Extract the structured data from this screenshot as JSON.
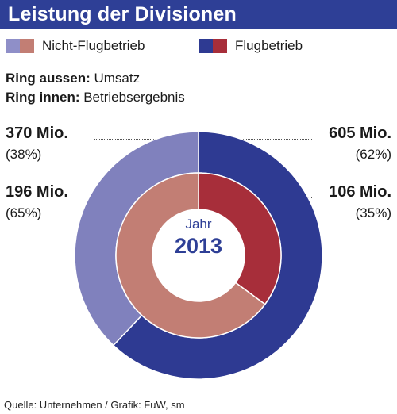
{
  "title": "Leistung der Divisionen",
  "legend": [
    {
      "label": "Nicht-Flugbetrieb",
      "colors": [
        "#8f8fc8",
        "#c27e74"
      ]
    },
    {
      "label": "Flugbetrieb",
      "colors": [
        "#2e3a92",
        "#a72e3a"
      ]
    }
  ],
  "ring_outer": {
    "key": "Ring aussen:",
    "value": "Umsatz"
  },
  "ring_inner": {
    "key": "Ring innen:",
    "value": "Betriebsergebnis"
  },
  "center": {
    "label": "Jahr",
    "year": "2013"
  },
  "source": "Quelle: Unternehmen / Grafik: FuW, sm",
  "chart_data": {
    "type": "pie",
    "title": "Leistung der Divisionen",
    "rings": [
      {
        "ring": "outer",
        "name": "Umsatz",
        "slices": [
          {
            "category": "Nicht-Flugbetrieb",
            "value": 370,
            "value_label": "370 Mio.",
            "percent": 38,
            "percent_label": "(38%)",
            "color": "#8081bd"
          },
          {
            "category": "Flugbetrieb",
            "value": 605,
            "value_label": "605 Mio.",
            "percent": 62,
            "percent_label": "(62%)",
            "color": "#2e3a92"
          }
        ]
      },
      {
        "ring": "inner",
        "name": "Betriebsergebnis",
        "slices": [
          {
            "category": "Nicht-Flugbetrieb",
            "value": 196,
            "value_label": "196 Mio.",
            "percent": 65,
            "percent_label": "(65%)",
            "color": "#c27e74"
          },
          {
            "category": "Flugbetrieb",
            "value": 106,
            "value_label": "106 Mio.",
            "percent": 35,
            "percent_label": "(35%)",
            "color": "#a72e3a"
          }
        ]
      }
    ]
  }
}
